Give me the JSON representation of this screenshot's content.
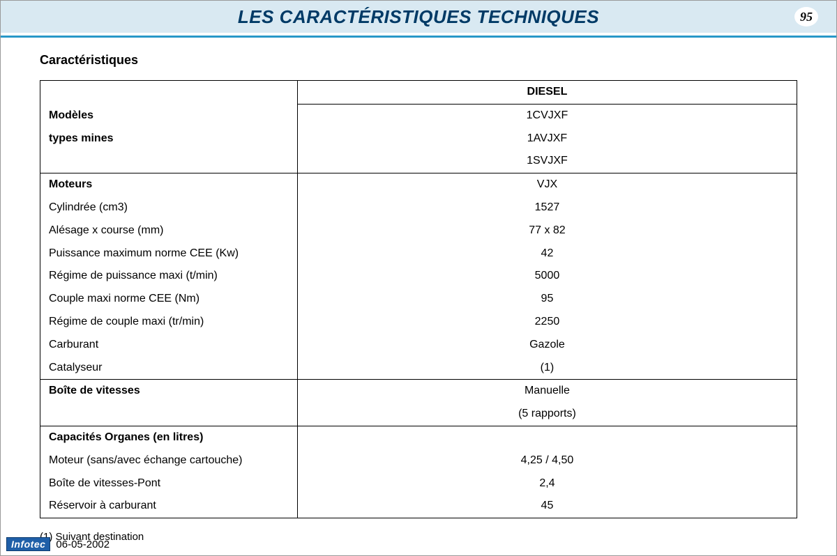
{
  "header": {
    "title": "LES CARACTÉRISTIQUES TECHNIQUES",
    "page_number": "95",
    "band_bg": "#d9e9f2",
    "rule_color": "#2898c8",
    "title_color": "#003a66"
  },
  "section_heading": "Caractéristiques",
  "table": {
    "column_header": "DIESEL",
    "groups": [
      {
        "rows": [
          {
            "label": "Modèles",
            "value": "1CVJXF",
            "bold_label": true
          },
          {
            "label": "types mines",
            "value": "1AVJXF",
            "bold_label": true
          },
          {
            "label": "",
            "value": "1SVJXF"
          }
        ]
      },
      {
        "rows": [
          {
            "label": "Moteurs",
            "value": "VJX",
            "bold_label": true
          },
          {
            "label": "Cylindrée (cm3)",
            "value": "1527"
          },
          {
            "label": "Alésage x course (mm)",
            "value": "77 x 82"
          },
          {
            "label": "Puissance maximum norme CEE (Kw)",
            "value": "42"
          },
          {
            "label": "Régime de puissance maxi (t/min)",
            "value": "5000"
          },
          {
            "label": "Couple maxi norme CEE (Nm)",
            "value": "95"
          },
          {
            "label": "Régime de couple maxi (tr/min)",
            "value": "2250"
          },
          {
            "label": "Carburant",
            "value": "Gazole"
          },
          {
            "label": "Catalyseur",
            "value": "(1)"
          }
        ]
      },
      {
        "rows": [
          {
            "label": "Boîte de vitesses",
            "value": "Manuelle",
            "bold_label": true
          },
          {
            "label": "",
            "value": "(5 rapports)"
          }
        ]
      },
      {
        "rows": [
          {
            "label": "Capacités Organes (en litres)",
            "value": "",
            "bold_label": true
          },
          {
            "label": "Moteur (sans/avec échange cartouche)",
            "value": "4,25 / 4,50"
          },
          {
            "label": "Boîte de vitesses-Pont",
            "value": "2,4"
          },
          {
            "label": "Réservoir à carburant",
            "value": "45"
          }
        ]
      }
    ]
  },
  "footnote": "(1) Suivant destination",
  "footer": {
    "badge": "Infotec",
    "date": "06-05-2002"
  }
}
